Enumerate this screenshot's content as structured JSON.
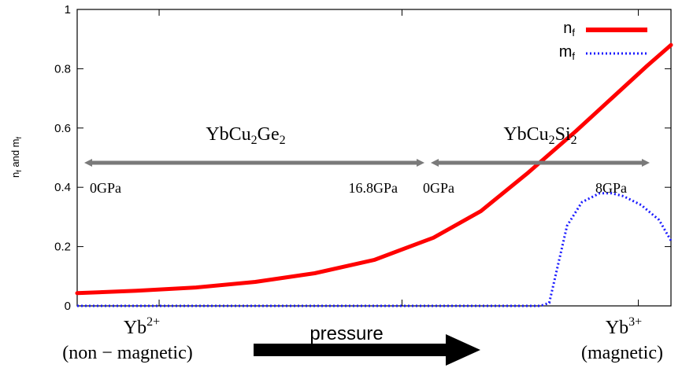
{
  "chart_data": {
    "type": "line",
    "xlim": [
      0,
      1
    ],
    "ylim": [
      0,
      1
    ],
    "yticks": [
      "0",
      "0.2",
      "0.4",
      "0.6",
      "0.8",
      "1"
    ],
    "ylabel_main": "n",
    "ylabel_sub1": "f",
    "ylabel_mid": " and m",
    "ylabel_sub2": "f",
    "grid": false,
    "legend_position": "top-right",
    "series": [
      {
        "name": "n",
        "name_sub": "f",
        "color": "#ff0000",
        "style": "solid",
        "points": [
          [
            0.0,
            0.043
          ],
          [
            0.1,
            0.051
          ],
          [
            0.2,
            0.062
          ],
          [
            0.3,
            0.081
          ],
          [
            0.4,
            0.11
          ],
          [
            0.5,
            0.155
          ],
          [
            0.6,
            0.23
          ],
          [
            0.68,
            0.32
          ],
          [
            0.76,
            0.45
          ],
          [
            0.84,
            0.59
          ],
          [
            0.9,
            0.7
          ],
          [
            0.96,
            0.81
          ],
          [
            1.0,
            0.88
          ]
        ]
      },
      {
        "name": "m",
        "name_sub": "f",
        "color": "#1a1aff",
        "style": "dotted",
        "points": [
          [
            0.0,
            0.0
          ],
          [
            0.5,
            0.0
          ],
          [
            0.78,
            0.0
          ],
          [
            0.795,
            0.01
          ],
          [
            0.81,
            0.14
          ],
          [
            0.825,
            0.27
          ],
          [
            0.85,
            0.35
          ],
          [
            0.88,
            0.38
          ],
          [
            0.9,
            0.38
          ],
          [
            0.92,
            0.37
          ],
          [
            0.95,
            0.34
          ],
          [
            0.98,
            0.29
          ],
          [
            1.0,
            0.22
          ]
        ]
      }
    ],
    "annotations": {
      "ybcuge": {
        "label_main": "YbCu",
        "label_sub1": "2",
        "label_mid": "Ge",
        "label_sub2": "2",
        "start_label": "0GPa",
        "end_label": "16.8GPa"
      },
      "ybcusi": {
        "label_main": "YbCu",
        "label_sub1": "2",
        "label_mid": "Si",
        "label_sub2": "2",
        "start_label": "0GPa",
        "end_label": "8GPa"
      },
      "left_ion": {
        "base": "Yb",
        "sup": "2+",
        "desc": "(non − magnetic)"
      },
      "right_ion": {
        "base": "Yb",
        "sup": "3+",
        "desc": "(magnetic)"
      },
      "pressure_label": "pressure"
    }
  }
}
